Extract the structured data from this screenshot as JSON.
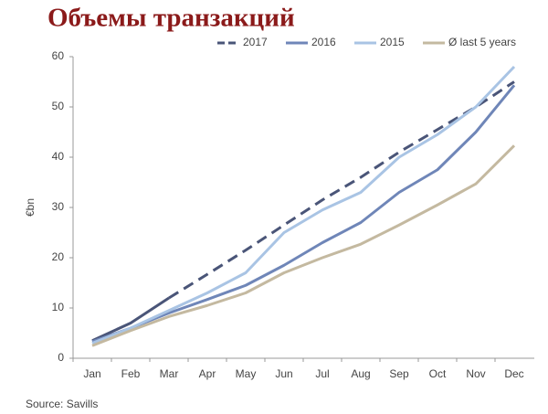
{
  "chart_data": {
    "type": "line",
    "title": "Объемы транзакций",
    "y_label": "€bn",
    "source": "Source: Savills",
    "categories": [
      "Jan",
      "Feb",
      "Mar",
      "Apr",
      "May",
      "Jun",
      "Jul",
      "Aug",
      "Sep",
      "Oct",
      "Nov",
      "Dec"
    ],
    "series": [
      {
        "name": "2017",
        "color": "#4a5578",
        "dashed_from": 2,
        "values": [
          3.5,
          7,
          12,
          16.7,
          21.5,
          26.5,
          31.5,
          36,
          41,
          45.5,
          50,
          55
        ]
      },
      {
        "name": "2016",
        "color": "#6f86b8",
        "values": [
          3.3,
          6,
          9,
          11.7,
          14.5,
          18.5,
          23,
          27,
          33,
          37.5,
          45,
          54.3
        ]
      },
      {
        "name": "2015",
        "color": "#a9c4e4",
        "values": [
          3,
          6,
          9.5,
          13,
          17,
          25,
          29.5,
          33,
          40,
          44.5,
          50,
          58
        ]
      },
      {
        "name": "Ø last 5 years",
        "color": "#c4b9a0",
        "values": [
          2.5,
          5.5,
          8.3,
          10.5,
          13,
          17,
          20,
          22.7,
          26.5,
          30.5,
          34.7,
          42.3
        ]
      }
    ],
    "ylim": [
      0,
      60
    ],
    "yticks": [
      0,
      10,
      20,
      30,
      40,
      50,
      60
    ]
  }
}
